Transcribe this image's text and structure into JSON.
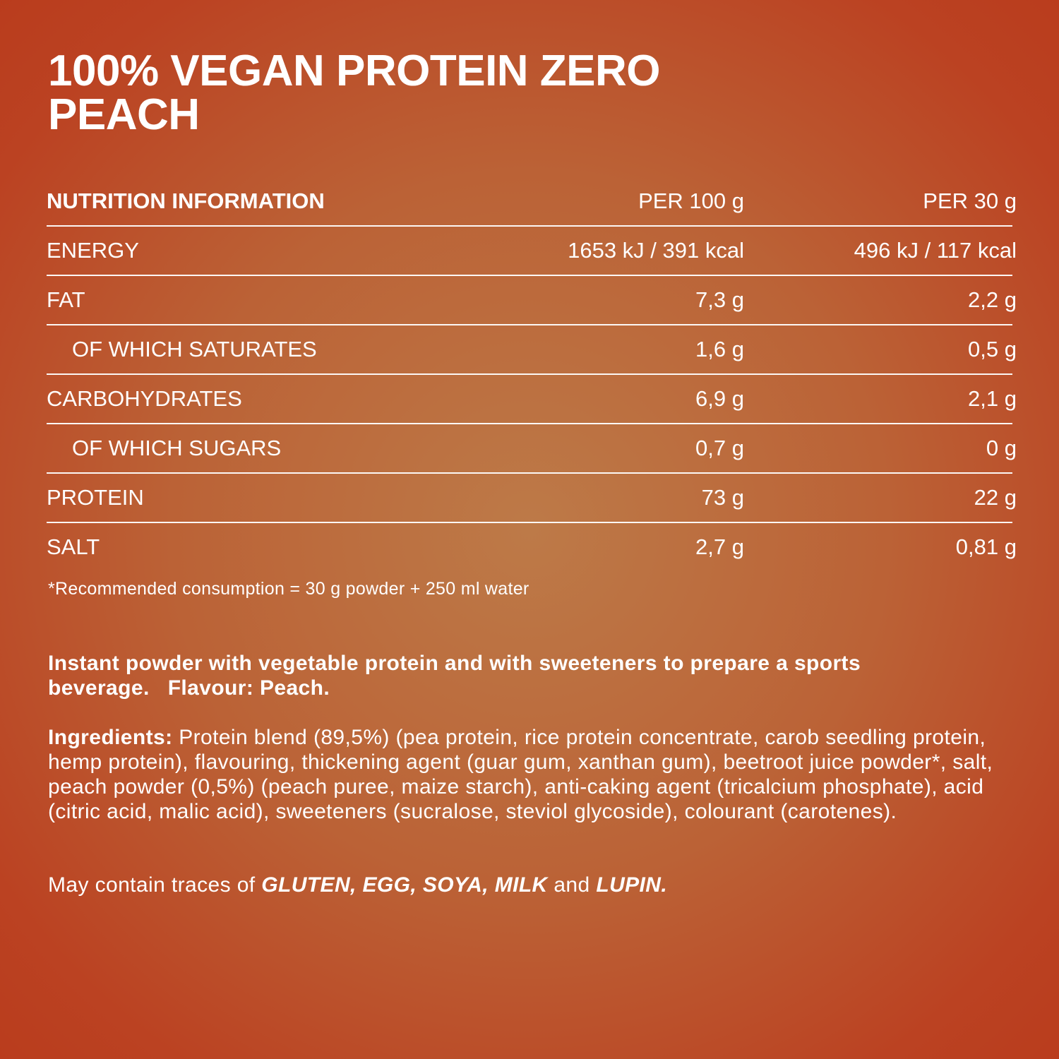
{
  "product": {
    "title_line1": "100% VEGAN PROTEIN ZERO",
    "title_line2": "PEACH"
  },
  "nutrition": {
    "header": {
      "label": "NUTRITION INFORMATION",
      "per100": "PER 100 g",
      "per30": "PER 30 g"
    },
    "rows": [
      {
        "label": "ENERGY",
        "per100": "1653 kJ / 391 kcal",
        "per30": "496 kJ / 117 kcal"
      },
      {
        "label": "FAT",
        "per100": "7,3 g",
        "per30": "2,2 g"
      },
      {
        "label": "OF WHICH SATURATES",
        "per100": "1,6 g",
        "per30": "0,5 g"
      },
      {
        "label": "CARBOHYDRATES",
        "per100": "6,9 g",
        "per30": "2,1 g"
      },
      {
        "label": "OF WHICH SUGARS",
        "per100": "0,7 g",
        "per30": "0 g"
      },
      {
        "label": "PROTEIN",
        "per100": "73 g",
        "per30": "22 g"
      },
      {
        "label": "SALT",
        "per100": "2,7 g",
        "per30": "0,81 g"
      }
    ],
    "footnote": "*Recommended consumption = 30 g powder + 250 ml water"
  },
  "description": {
    "text": "Instant powder with vegetable protein and with sweeteners to prepare a sports beverage.",
    "flavour": "Flavour: Peach."
  },
  "ingredients": {
    "label": "Ingredients:",
    "text": " Protein blend (89,5%) (pea protein, rice protein concentrate, carob seedling protein, hemp protein), flavouring, thickening agent (guar gum, xanthan gum), beetroot juice powder*, salt, peach powder (0,5%) (peach puree, maize starch), anti-caking agent (tricalcium phosphate), acid (citric acid, malic acid), sweeteners (sucralose, steviol glycoside), colourant (carotenes)."
  },
  "allergens": {
    "prefix": "May contain traces of ",
    "list": "GLUTEN, EGG, SOYA, MILK",
    "and": " and ",
    "last": "LUPIN."
  }
}
